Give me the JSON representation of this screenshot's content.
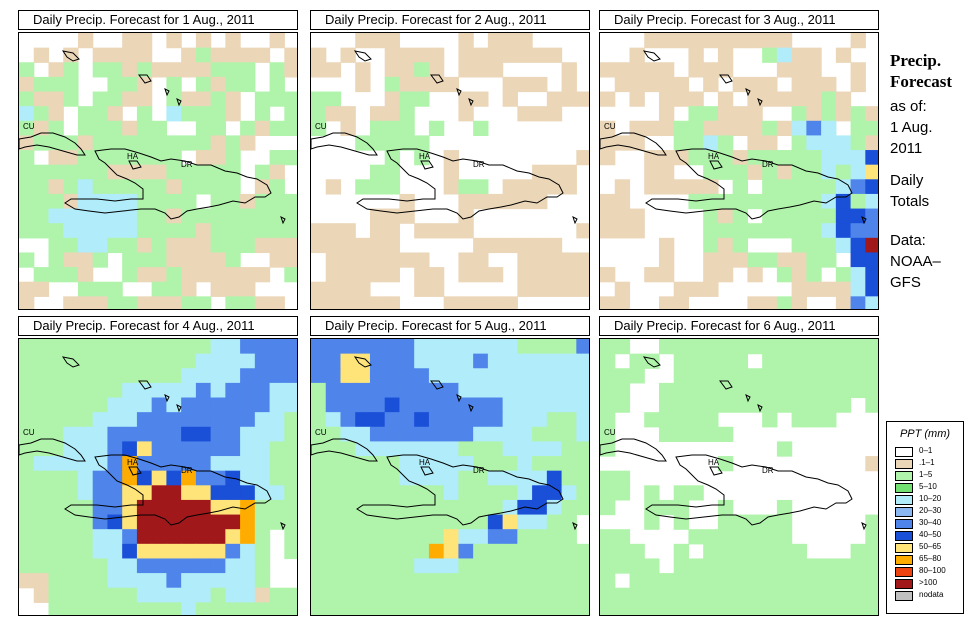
{
  "colors": {
    "c0": "#ffffff",
    "c1": "#ebd6b8",
    "c2": "#b0f4ab",
    "c3": "#72e072",
    "c4": "#b0ecfa",
    "c5": "#8bb8f0",
    "c6": "#4f85eb",
    "c7": "#1a4fd7",
    "c8": "#ffe479",
    "c9": "#ffac00",
    "c10": "#ee4411",
    "c11": "#a1181b",
    "nd": "#c0c0c0"
  },
  "panels": [
    {
      "title": "Daily Precip. Forecast for  1 Aug., 2011",
      "labels": {
        "cu": "CU",
        "ha": "HA",
        "dr": "DR"
      }
    },
    {
      "title": "Daily Precip. Forecast for  2 Aug., 2011",
      "labels": {
        "cu": "CU",
        "ha": "HA",
        "dr": "DR"
      }
    },
    {
      "title": "Daily Precip. Forecast for  3 Aug., 2011",
      "labels": {
        "cu": "CU",
        "ha": "HA",
        "dr": "DR"
      }
    },
    {
      "title": "Daily Precip. Forecast for  4 Aug., 2011",
      "labels": {
        "cu": "CU",
        "ha": "HA",
        "dr": "DR"
      }
    },
    {
      "title": "Daily Precip. Forecast for  5 Aug., 2011",
      "labels": {
        "cu": "CU",
        "ha": "HA",
        "dr": "DR"
      }
    },
    {
      "title": "Daily Precip. Forecast for  6 Aug., 2011",
      "labels": {
        "cu": "CU",
        "ha": "HA",
        "dr": "DR"
      }
    }
  ],
  "info": {
    "line1": "Precip.",
    "line2": "Forecast",
    "line3": "as of:",
    "line4": "1 Aug.",
    "line5": "2011",
    "line6": "Daily",
    "line7": "Totals",
    "line8": "Data:",
    "line9": "NOAA–",
    "line10": "GFS"
  },
  "legend": {
    "title": "PPT (mm)",
    "items": [
      {
        "label": "0–1",
        "color": "#ffffff"
      },
      {
        "label": ".1–1",
        "color": "#ebd6b8"
      },
      {
        "label": "1–5",
        "color": "#b0f4ab"
      },
      {
        "label": "5–10",
        "color": "#72e072"
      },
      {
        "label": "10–20",
        "color": "#b0ecfa"
      },
      {
        "label": "20–30",
        "color": "#8bb8f0"
      },
      {
        "label": "30–40",
        "color": "#4f85eb"
      },
      {
        "label": "40–50",
        "color": "#1a4fd7"
      },
      {
        "label": "50–65",
        "color": "#ffe479"
      },
      {
        "label": "65–80",
        "color": "#ffac00"
      },
      {
        "label": "80–100",
        "color": "#ee4411"
      },
      {
        "label": ">100",
        "color": "#a1181b"
      },
      {
        "label": "nodata",
        "color": "#c0c0c0"
      }
    ]
  },
  "grids": [
    [
      "....B..BB.B.B.B..B.",
      ".B.B.BBBB..BGBBBB.B",
      "G.BG.GGBGBBBBGGG.GB",
      "BGGG..GGB.G.GBGG.G.",
      "GBBG.GGBB.GBBGB.GGG",
      "LGB.GGB.G.LGGGB.G.G",
      "GBG.GGGBGG..GG.GBGG",
      "BGGGBGGGGGGGGBGB...",
      "G.BBGGGGGGG.BBG..GG",
      "GGGGGGBBBBGGGGG.GB.",
      "GGBGLGGGGGBGGGG.BG.",
      "GGGBLLLLGGGG.GGBGGG",
      "GGLLLLLLGGBGGGGGGGG",
      "GGGLLLLLGGGGBGGGGGG",
      "..GGLLGGBGBBBGGGBBB",
      "G.GBBG.GGGBBBBG..BB",
      ".GGGB..GBBGBBBBBB.G",
      "BB..GGG..GGB.BBB...",
      "B..BBBGGBBBGG.GGBB."
    ],
    [
      "...BBB....B.BBB....",
      "B.B..BBBB.BBBBBBB..",
      "BB.B.BBGB.BBB....B.",
      "...B.GBBBB...BBB.B.",
      "GG...BGG..BB.B..BBB",
      "GBB.BBG...B...BBB..",
      "G.B.GGG.G..G.......",
      "...GGGGG...........",
      ".....G.G.B........B",
      "....GG...B.....BBB.",
      ".B.GGG...BGG.BBBBB.",
      "......B...BBBBBB...",
      "....BBB...B........",
      "BBB.BB.BBBB.......B",
      "BBBBBB.....BBBBBB..",
      ".BBBBBBB..BB..BBBBB",
      ".BBBBB.BB.BBB.BBBBB",
      "BBBB...BB.....BBBBB",
      "BBBBBB...BBBBB....."
    ],
    [
      "...BBBBBBBBBB....B.",
      "..B...B.B..GLBB.B..",
      "BBBBB.BBB...BBB..B.",
      ".BBBBB.B.BBB.BBB.B.",
      "B.B.BBB.B.BBBBBGB..",
      "....B.GGBBB..GBGBGB",
      "B.BBBGGBBBBGBLPL.GG",
      "BBB..GGLG.BB.GLLLGB",
      "B..BBBGGGBGGGGGLLLQ",
      "...BB..GGGBGBGGLGLY",
      ".B.BBBBB.G.GGGGGLPQ",
      "BB....GGGGGGGGGLQGL",
      "BBB....GBG.GGGGGQQP",
      "BBB....GGGGGGGGLQPP",
      "....B..GBG...GGGLQR",
      "....B..BBBGGBBGG.QQ",
      "B..BB..BB.B.GBG.GLQ",
      ".B...BBB.....BBBBLQ",
      "BB..BB....BBGB..BPL"
    ],
    [
      "GGGGGGGGGGGGGLLPPPP",
      "GGGGGGGGGGGGLLLLPPP",
      "GGGGGGGGGGGLLLLPPPP",
      "GGGGGGGLLLLLPLPPPLL",
      "GGGGGGLLLPLPPPPPPLL",
      "GGGGGLLLPPPPPPPPLLG",
      "GGGLLLPPPPPQQPPLLLG",
      "GGGLLLPQYPPPPPPLLGG",
      "GLLLLLPOPPPPPLLLLGG",
      "GGGGLPPOQYQOPPQLLGG",
      "GGGGLPPYYRRYYQQQLLG",
      "GGGGGPPYRRRRRYYOGGG",
      "GGGGGPQYRRRRRRROGGG",
      "GGGGGLLPRRRRRRYOG.G",
      "GGGGGLLQYYYYYYPLG.G",
      "GGGGGGLLPPPPPPLLG..",
      "BBGGGGLLLLPLLLLLG..",
      ".BGGGGGGLLLLLGLLBGG",
      "..GGGGGGGGGLGGGGGGG"
    ],
    [
      "PPPPPPPLLLLLLLGGGGP",
      "PPYYPPPLLLLPLLLLLLL",
      "PPYYPPPPLLLLLLLLLLL",
      "GPPPPPPPPPLLLLLLLLL",
      "GPPPPQPPPPPPPLLLLLL",
      "GLPQQPPQPPPPPLLLGGL",
      "GGLLPPPPPPPLLLLGGGL",
      "GGGLLLLLLLGGGLLLLGG",
      "GGGGGGLLLLLGGGLGGGG",
      "GGGGGGLLLLGGLLLLQGG",
      "GGGGGGGGGLGGGGLQQLG",
      "GGGGGGGGGGGGGLQQLGG",
      "GGGGGGGGGGGGQYLLGG.",
      "GGGGGGGGGYLLPPGGGG.",
      "GGGGGGGGOYPGGGGGGGG",
      "GGGGGGGLLLGGGGGGGGG",
      "GGGGGGGGGGGGGGGGGGG",
      "GGGGGGGGGGGGGGGGGGG",
      "GGGGGGGGGGGGGGGGGGG"
    ],
    [
      "GG..GGGGGGGGGGGGGGG",
      "G.GG.GGGGG.GGGGGGGG",
      "GGG..GGGGGGGGGGGGGG",
      "GG..GGGGGGGGGGGGGGG",
      "GG..GGGGGGGGGGGGG.G",
      "G..GGGGG...G.GGG...",
      "G...GGGGG..........",
      "G...........G......",
      "........G.........B",
      "GG.................",
      "GG.G.GG............",
      "G..GGG..G...G......",
      "...G.G..GGGGG.....G",
      "GG....GGGGGGG.....G",
      "GGG..G.GGGGGGG...GG",
      "GGGG.GGGGGGGGGGGGGG",
      "G.GGGGGGGGGGGGGGGGG",
      "GGGGGGGGGGGGGGGGGGG",
      "GGGGGGGGGGGGGGGGGGG"
    ]
  ]
}
